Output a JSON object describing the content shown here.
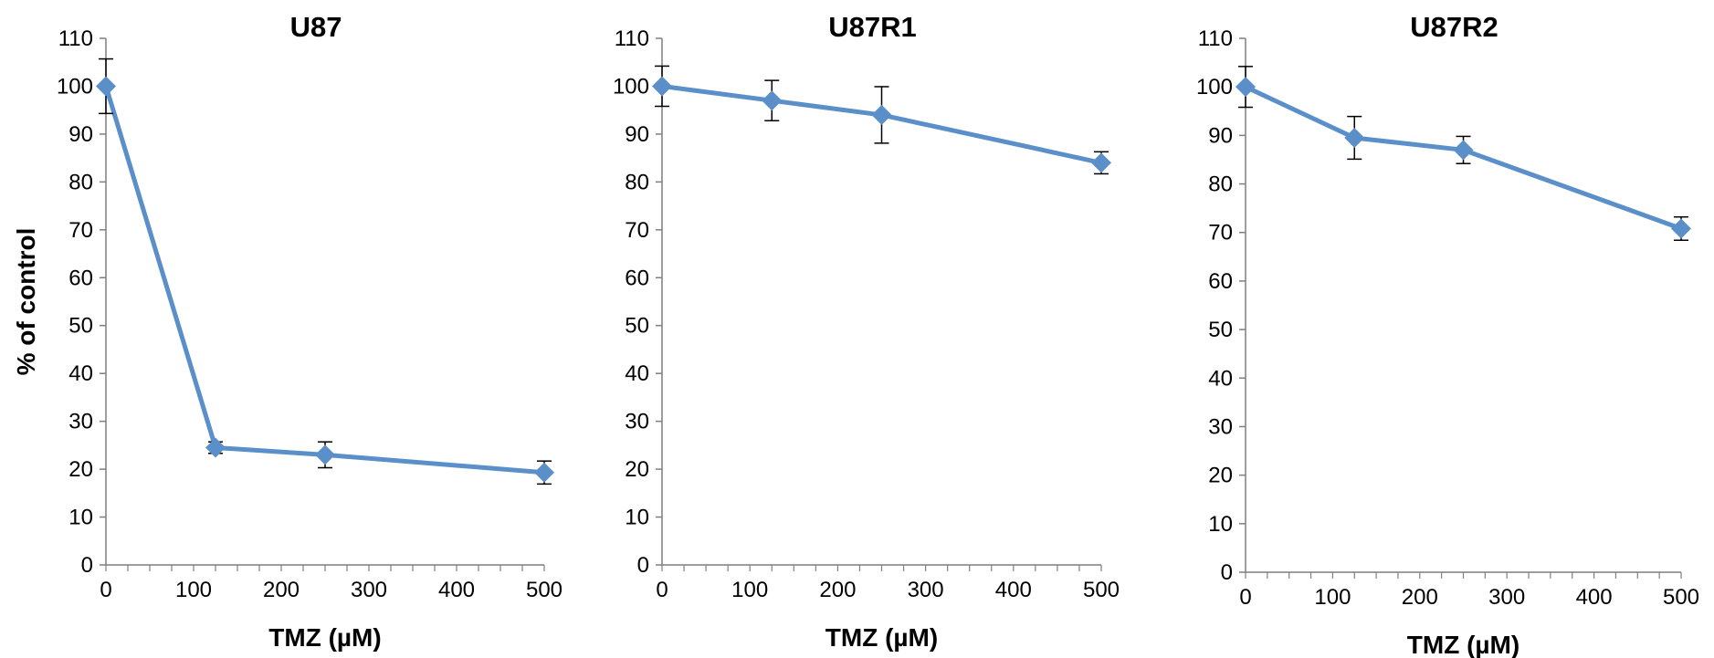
{
  "colors": {
    "series": "#5b8fc9",
    "marker": "#5b8fc9",
    "axis": "#7f7f7f",
    "error_bar": "#000000"
  },
  "chart_data": [
    {
      "type": "line",
      "title": "U87",
      "xlabel": "TMZ (µM)",
      "ylabel": "% of control",
      "xlim": [
        0,
        500
      ],
      "ylim": [
        0,
        110
      ],
      "xticks": [
        0,
        100,
        200,
        300,
        400,
        500
      ],
      "yticks": [
        0,
        10,
        20,
        30,
        40,
        50,
        60,
        70,
        80,
        90,
        100,
        110
      ],
      "grid": false,
      "legend": "none",
      "x": [
        0,
        125,
        250,
        500
      ],
      "series": [
        {
          "values": [
            100,
            24.5,
            23,
            19.3
          ],
          "errors": [
            5.7,
            1.2,
            2.7,
            2.4
          ]
        }
      ]
    },
    {
      "type": "line",
      "title": "U87R1",
      "xlabel": "TMZ (µM)",
      "ylabel": "",
      "xlim": [
        0,
        500
      ],
      "ylim": [
        0,
        110
      ],
      "xticks": [
        0,
        100,
        200,
        300,
        400,
        500
      ],
      "yticks": [
        0,
        10,
        20,
        30,
        40,
        50,
        60,
        70,
        80,
        90,
        100,
        110
      ],
      "grid": false,
      "legend": "none",
      "x": [
        0,
        125,
        250,
        500
      ],
      "series": [
        {
          "values": [
            100,
            97,
            94,
            84
          ],
          "errors": [
            4.2,
            4.2,
            5.9,
            2.3
          ]
        }
      ]
    },
    {
      "type": "line",
      "title": "U87R2",
      "xlabel": "TMZ (µM)",
      "ylabel": "",
      "xlim": [
        0,
        500
      ],
      "ylim": [
        0,
        110
      ],
      "xticks": [
        0,
        100,
        200,
        300,
        400,
        500
      ],
      "yticks": [
        0,
        10,
        20,
        30,
        40,
        50,
        60,
        70,
        80,
        90,
        100,
        110
      ],
      "grid": false,
      "legend": "none",
      "x": [
        0,
        125,
        250,
        500
      ],
      "series": [
        {
          "values": [
            100,
            89.5,
            87,
            70.8
          ],
          "errors": [
            4.2,
            4.4,
            2.8,
            2.4
          ]
        }
      ]
    }
  ]
}
